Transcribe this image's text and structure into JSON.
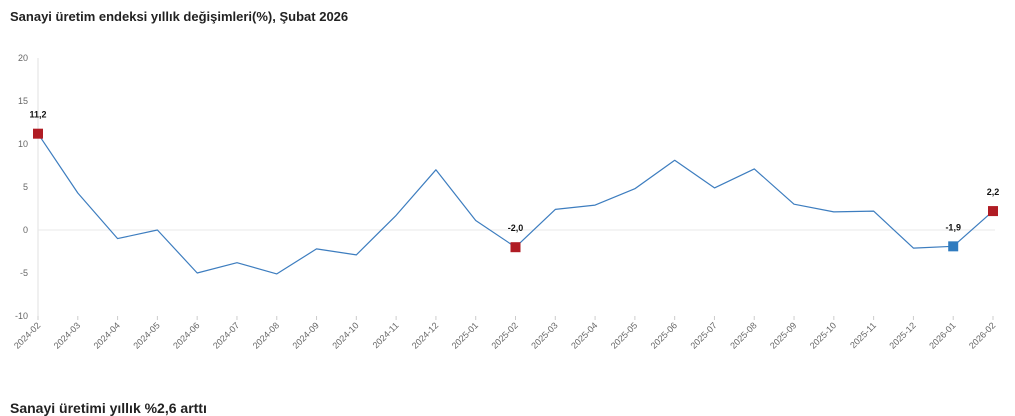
{
  "chart_data": {
    "type": "line",
    "title": "Sanayi üretim endeksi yıllık değişimleri(%), Şubat 2026",
    "xlabel": "",
    "ylabel": "",
    "ylim": [
      -10,
      20
    ],
    "yticks": [
      -10,
      -5,
      0,
      5,
      10,
      15,
      20
    ],
    "grid": false,
    "categories": [
      "2024-02",
      "2024-03",
      "2024-04",
      "2024-05",
      "2024-06",
      "2024-07",
      "2024-08",
      "2024-09",
      "2024-10",
      "2024-11",
      "2024-12",
      "2025-01",
      "2025-02",
      "2025-03",
      "2025-04",
      "2025-05",
      "2025-06",
      "2025-07",
      "2025-08",
      "2025-09",
      "2025-10",
      "2025-11",
      "2025-12",
      "2026-01",
      "2026-02"
    ],
    "series": [
      {
        "values": [
          11.2,
          4.3,
          -1.0,
          0.0,
          -5.0,
          -3.8,
          -5.1,
          -2.2,
          -2.9,
          1.7,
          7.0,
          1.1,
          -2.0,
          2.4,
          2.9,
          4.8,
          8.1,
          4.9,
          7.1,
          3.0,
          2.1,
          2.2,
          -2.1,
          -1.9,
          2.2
        ],
        "color": "#3d7dbf"
      }
    ],
    "annotations": [
      {
        "index": 0,
        "label": "11,2",
        "color": "#b01c24"
      },
      {
        "index": 12,
        "label": "-2,0",
        "color": "#b01c24"
      },
      {
        "index": 23,
        "label": "-1,9",
        "color": "#2f7bbf"
      },
      {
        "index": 24,
        "label": "2,2",
        "color": "#b01c24"
      }
    ]
  },
  "page": {
    "next_heading": "Sanayi üretimi yıllık %2,6 arttı"
  }
}
